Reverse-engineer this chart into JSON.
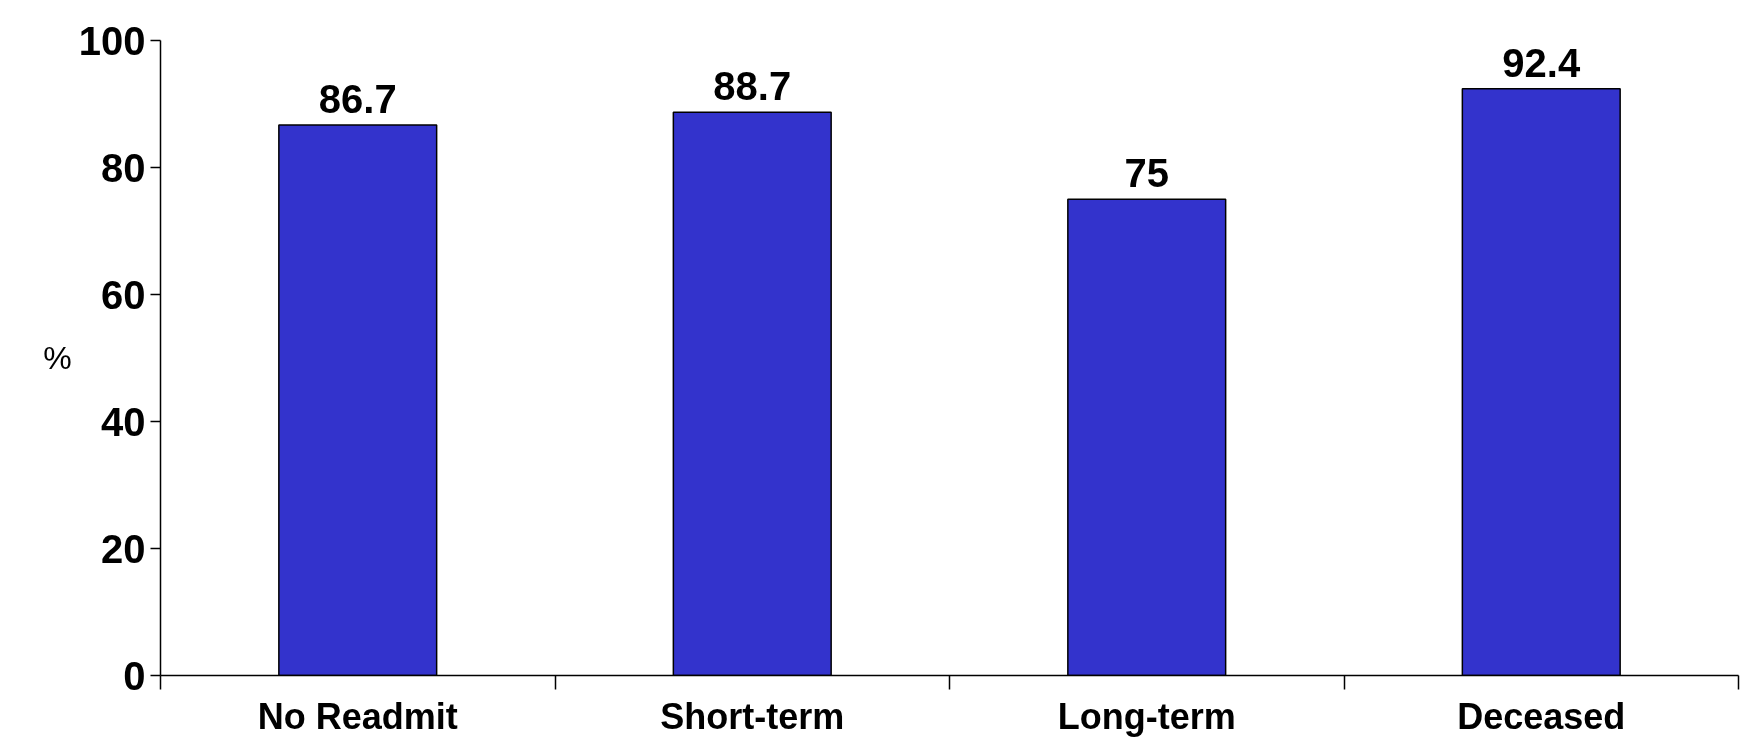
{
  "chart_data": {
    "type": "bar",
    "ylabel": "%",
    "categories": [
      "No Readmit",
      "Short-term",
      "Long-term",
      "Deceased"
    ],
    "values": [
      86.7,
      88.7,
      75,
      92.4
    ],
    "color": "#3333cc",
    "ylim": [
      0,
      100
    ],
    "yticks": [
      0,
      20,
      40,
      60,
      80,
      100
    ],
    "data_labels": true,
    "grid": false
  }
}
